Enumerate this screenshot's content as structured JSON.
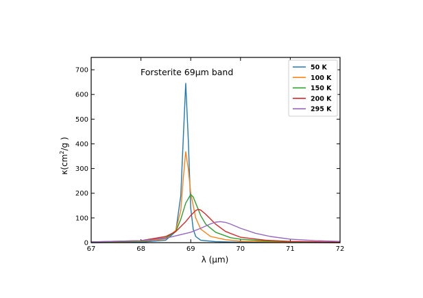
{
  "chart_data": {
    "type": "line",
    "title": "Forsterite 69µm band",
    "xlabel": "λ (µm)",
    "ylabel_parts": {
      "base": "κ(cm",
      "sup": "2",
      "tail": "/g )"
    },
    "xlim": [
      67,
      72
    ],
    "ylim": [
      0,
      750
    ],
    "xticks": [
      67,
      68,
      69,
      70,
      71,
      72
    ],
    "yticks": [
      0,
      100,
      200,
      300,
      400,
      500,
      600,
      700
    ],
    "grid": false,
    "legend_placement": "top-right",
    "series": [
      {
        "name": "50 K",
        "color": "#1f77b4",
        "x": [
          67.0,
          68.0,
          68.5,
          68.7,
          68.8,
          68.85,
          68.9,
          68.95,
          69.0,
          69.05,
          69.1,
          69.2,
          69.5,
          70.0,
          72.0
        ],
        "y": [
          0,
          2,
          10,
          45,
          190,
          420,
          645,
          420,
          140,
          55,
          25,
          10,
          4,
          2,
          0
        ]
      },
      {
        "name": "100 K",
        "color": "#ff7f0e",
        "x": [
          67.0,
          68.0,
          68.5,
          68.7,
          68.8,
          68.85,
          68.9,
          68.95,
          69.0,
          69.1,
          69.2,
          69.4,
          69.7,
          70.0,
          71.0,
          72.0
        ],
        "y": [
          2,
          5,
          15,
          50,
          130,
          260,
          368,
          300,
          200,
          100,
          55,
          25,
          12,
          6,
          2,
          0
        ]
      },
      {
        "name": "150 K",
        "color": "#2ca02c",
        "x": [
          67.0,
          68.0,
          68.5,
          68.7,
          68.8,
          68.9,
          69.0,
          69.05,
          69.1,
          69.2,
          69.3,
          69.5,
          69.8,
          70.0,
          70.5,
          71.0,
          72.0
        ],
        "y": [
          2,
          6,
          20,
          45,
          95,
          160,
          195,
          185,
          160,
          110,
          75,
          42,
          20,
          14,
          7,
          4,
          1
        ]
      },
      {
        "name": "200 K",
        "color": "#d62728",
        "x": [
          67.0,
          68.0,
          68.5,
          68.7,
          68.9,
          69.0,
          69.1,
          69.15,
          69.2,
          69.3,
          69.5,
          69.7,
          70.0,
          70.5,
          71.0,
          72.0
        ],
        "y": [
          3,
          8,
          25,
          45,
          85,
          110,
          130,
          135,
          132,
          115,
          75,
          45,
          22,
          10,
          5,
          2
        ]
      },
      {
        "name": "295 K",
        "color": "#9467bd",
        "x": [
          67.0,
          68.0,
          68.5,
          69.0,
          69.2,
          69.4,
          69.5,
          69.6,
          69.7,
          69.8,
          70.0,
          70.3,
          70.6,
          71.0,
          71.5,
          72.0
        ],
        "y": [
          3,
          8,
          18,
          42,
          58,
          76,
          83,
          85,
          82,
          75,
          58,
          38,
          25,
          14,
          8,
          5
        ]
      }
    ]
  }
}
